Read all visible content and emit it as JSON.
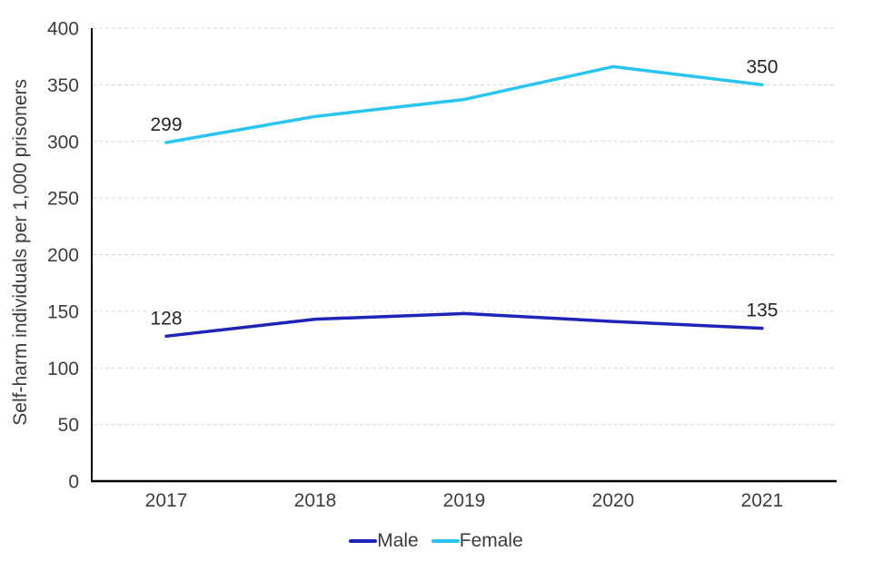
{
  "chart_data": {
    "type": "line",
    "title": "",
    "xlabel": "",
    "ylabel": "Self-harm individuals per 1,000 prisoners",
    "categories": [
      "2017",
      "2018",
      "2019",
      "2020",
      "2021"
    ],
    "series": [
      {
        "name": "Male",
        "color": "#2023b7",
        "values": [
          128,
          143,
          148,
          141,
          135
        ]
      },
      {
        "name": "Female",
        "color": "#29c5f1",
        "values": [
          299,
          322,
          337,
          366,
          350
        ]
      }
    ],
    "ylim": [
      0,
      400
    ],
    "yticks": [
      "0",
      "50",
      "100",
      "150",
      "200",
      "250",
      "300",
      "350",
      "400"
    ],
    "grid": "horizontal-dashed",
    "legend_position": "bottom",
    "point_labels": [
      {
        "series": "Male",
        "category": "2017",
        "text": "128"
      },
      {
        "series": "Male",
        "category": "2021",
        "text": "135"
      },
      {
        "series": "Female",
        "category": "2017",
        "text": "299"
      },
      {
        "series": "Female",
        "category": "2021",
        "text": "350"
      }
    ]
  },
  "colors": {
    "background": "#ffffff",
    "gridline": "#d9d9d9",
    "axis": "#000000",
    "tick_text": "#3d3d3d",
    "data_label_text": "#262626"
  }
}
